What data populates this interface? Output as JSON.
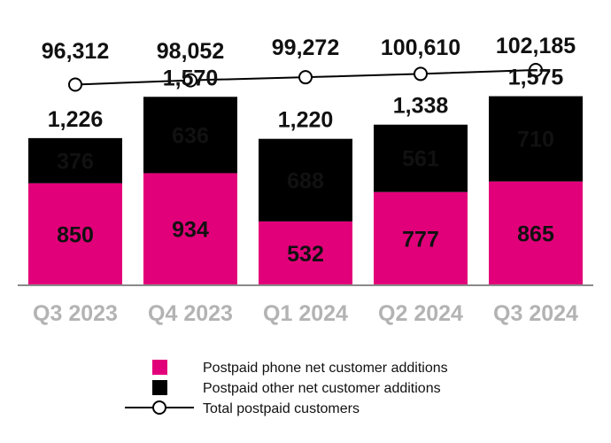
{
  "chart_data": {
    "type": "bar",
    "stacked": true,
    "categories": [
      "Q3 2023",
      "Q4 2023",
      "Q1 2024",
      "Q2 2024",
      "Q3 2024"
    ],
    "series": [
      {
        "name": "Postpaid phone net customer additions",
        "values": [
          850,
          934,
          532,
          777,
          865
        ],
        "color": "#e2007a"
      },
      {
        "name": "Postpaid other net customer additions",
        "values": [
          376,
          636,
          688,
          561,
          710
        ],
        "color": "#000000"
      }
    ],
    "totals": [
      1226,
      1570,
      1220,
      1338,
      1575
    ],
    "total_labels": [
      "1,226",
      "1,570",
      "1,220",
      "1,338",
      "1,575"
    ],
    "line_series": {
      "name": "Total postpaid customers",
      "values": [
        96312,
        98052,
        99272,
        100610,
        102185
      ],
      "labels": [
        "96,312",
        "98,052",
        "99,272",
        "100,610",
        "102,185"
      ],
      "marker": "open-circle",
      "color": "#000000"
    },
    "ylim": [
      0,
      1700
    ],
    "grid": false,
    "legend_position": "bottom-center"
  }
}
